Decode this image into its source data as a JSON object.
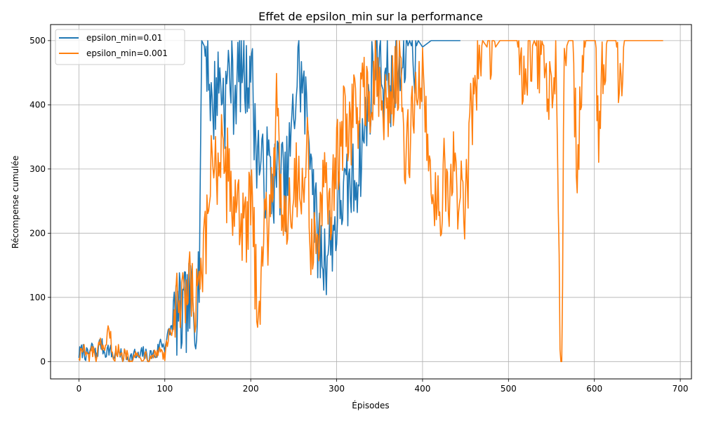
{
  "chart_data": {
    "type": "line",
    "title": "Effet de epsilon_min sur la performance",
    "xlabel": "Épisodes",
    "ylabel": "Récompense cumulée",
    "xlim": [
      -33,
      713
    ],
    "ylim": [
      -27,
      525
    ],
    "xticks": [
      0,
      100,
      200,
      300,
      400,
      500,
      600,
      700
    ],
    "yticks": [
      0,
      100,
      200,
      300,
      400,
      500
    ],
    "grid": true,
    "legend_position": "upper-left",
    "series": [
      {
        "name": "epsilon_min=0.01",
        "color": "#1f77b4",
        "episodes": 445,
        "keypoints": [
          [
            0,
            12
          ],
          [
            5,
            18
          ],
          [
            10,
            8
          ],
          [
            15,
            22
          ],
          [
            20,
            10
          ],
          [
            25,
            30
          ],
          [
            30,
            15
          ],
          [
            35,
            20
          ],
          [
            40,
            8
          ],
          [
            45,
            16
          ],
          [
            50,
            6
          ],
          [
            55,
            12
          ],
          [
            60,
            5
          ],
          [
            65,
            10
          ],
          [
            70,
            6
          ],
          [
            75,
            14
          ],
          [
            80,
            5
          ],
          [
            85,
            12
          ],
          [
            90,
            10
          ],
          [
            95,
            30
          ],
          [
            100,
            25
          ],
          [
            105,
            45
          ],
          [
            110,
            60
          ],
          [
            115,
            75
          ],
          [
            120,
            60
          ],
          [
            125,
            80
          ],
          [
            130,
            90
          ],
          [
            135,
            70
          ],
          [
            140,
            150
          ],
          [
            143,
            500
          ],
          [
            150,
            480
          ],
          [
            155,
            380
          ],
          [
            160,
            430
          ],
          [
            165,
            440
          ],
          [
            170,
            400
          ],
          [
            175,
            460
          ],
          [
            180,
            420
          ],
          [
            185,
            440
          ],
          [
            190,
            470
          ],
          [
            195,
            430
          ],
          [
            200,
            480
          ],
          [
            205,
            350
          ],
          [
            210,
            320
          ],
          [
            215,
            280
          ],
          [
            220,
            310
          ],
          [
            225,
            270
          ],
          [
            230,
            290
          ],
          [
            235,
            300
          ],
          [
            240,
            260
          ],
          [
            245,
            320
          ],
          [
            250,
            380
          ],
          [
            255,
            460
          ],
          [
            260,
            430
          ],
          [
            265,
            380
          ],
          [
            270,
            350
          ],
          [
            275,
            220
          ],
          [
            280,
            180
          ],
          [
            285,
            160
          ],
          [
            290,
            180
          ],
          [
            295,
            200
          ],
          [
            300,
            220
          ],
          [
            305,
            260
          ],
          [
            310,
            250
          ],
          [
            315,
            270
          ],
          [
            320,
            280
          ],
          [
            325,
            300
          ],
          [
            330,
            340
          ],
          [
            335,
            380
          ],
          [
            340,
            430
          ],
          [
            345,
            470
          ],
          [
            350,
            490
          ],
          [
            355,
            430
          ],
          [
            360,
            450
          ],
          [
            365,
            420
          ],
          [
            370,
            460
          ],
          [
            375,
            440
          ],
          [
            380,
            480
          ],
          [
            385,
            500
          ],
          [
            390,
            480
          ],
          [
            395,
            500
          ],
          [
            400,
            490
          ],
          [
            410,
            500
          ],
          [
            420,
            500
          ],
          [
            430,
            500
          ],
          [
            440,
            500
          ],
          [
            444,
            500
          ]
        ]
      },
      {
        "name": "epsilon_min=0.001",
        "color": "#ff7f0e",
        "episodes": 681,
        "keypoints": [
          [
            0,
            10
          ],
          [
            5,
            20
          ],
          [
            10,
            5
          ],
          [
            15,
            15
          ],
          [
            20,
            8
          ],
          [
            25,
            25
          ],
          [
            30,
            10
          ],
          [
            35,
            55
          ],
          [
            40,
            8
          ],
          [
            45,
            18
          ],
          [
            50,
            4
          ],
          [
            55,
            15
          ],
          [
            60,
            8
          ],
          [
            65,
            10
          ],
          [
            70,
            5
          ],
          [
            75,
            12
          ],
          [
            80,
            8
          ],
          [
            85,
            15
          ],
          [
            90,
            12
          ],
          [
            95,
            20
          ],
          [
            100,
            10
          ],
          [
            105,
            40
          ],
          [
            110,
            55
          ],
          [
            115,
            80
          ],
          [
            120,
            70
          ],
          [
            125,
            90
          ],
          [
            130,
            110
          ],
          [
            135,
            80
          ],
          [
            140,
            100
          ],
          [
            145,
            150
          ],
          [
            150,
            200
          ],
          [
            155,
            350
          ],
          [
            160,
            300
          ],
          [
            165,
            330
          ],
          [
            170,
            260
          ],
          [
            175,
            320
          ],
          [
            180,
            220
          ],
          [
            185,
            280
          ],
          [
            190,
            200
          ],
          [
            195,
            190
          ],
          [
            200,
            260
          ],
          [
            205,
            150
          ],
          [
            210,
            100
          ],
          [
            215,
            200
          ],
          [
            220,
            220
          ],
          [
            225,
            300
          ],
          [
            230,
            380
          ],
          [
            235,
            260
          ],
          [
            240,
            240
          ],
          [
            245,
            250
          ],
          [
            250,
            270
          ],
          [
            255,
            300
          ],
          [
            260,
            250
          ],
          [
            265,
            350
          ],
          [
            270,
            200
          ],
          [
            275,
            180
          ],
          [
            280,
            200
          ],
          [
            285,
            260
          ],
          [
            290,
            240
          ],
          [
            295,
            270
          ],
          [
            300,
            300
          ],
          [
            305,
            340
          ],
          [
            310,
            380
          ],
          [
            315,
            360
          ],
          [
            320,
            400
          ],
          [
            325,
            380
          ],
          [
            330,
            420
          ],
          [
            335,
            440
          ],
          [
            340,
            380
          ],
          [
            345,
            450
          ],
          [
            350,
            420
          ],
          [
            355,
            380
          ],
          [
            360,
            400
          ],
          [
            365,
            430
          ],
          [
            370,
            460
          ],
          [
            375,
            420
          ],
          [
            380,
            300
          ],
          [
            385,
            340
          ],
          [
            390,
            420
          ],
          [
            395,
            400
          ],
          [
            400,
            450
          ],
          [
            405,
            360
          ],
          [
            410,
            300
          ],
          [
            415,
            240
          ],
          [
            420,
            260
          ],
          [
            425,
            280
          ],
          [
            430,
            220
          ],
          [
            435,
            300
          ],
          [
            440,
            260
          ],
          [
            445,
            280
          ],
          [
            450,
            220
          ],
          [
            455,
            350
          ],
          [
            460,
            420
          ],
          [
            465,
            460
          ],
          [
            470,
            500
          ],
          [
            480,
            480
          ],
          [
            490,
            500
          ],
          [
            500,
            500
          ],
          [
            510,
            500
          ],
          [
            515,
            450
          ],
          [
            520,
            430
          ],
          [
            525,
            480
          ],
          [
            530,
            500
          ],
          [
            540,
            460
          ],
          [
            545,
            380
          ],
          [
            550,
            420
          ],
          [
            555,
            500
          ],
          [
            560,
            20
          ],
          [
            562,
            0
          ],
          [
            565,
            480
          ],
          [
            570,
            500
          ],
          [
            575,
            500
          ],
          [
            580,
            300
          ],
          [
            585,
            450
          ],
          [
            590,
            500
          ],
          [
            595,
            500
          ],
          [
            600,
            500
          ],
          [
            605,
            380
          ],
          [
            610,
            470
          ],
          [
            615,
            500
          ],
          [
            620,
            500
          ],
          [
            625,
            500
          ],
          [
            630,
            450
          ],
          [
            635,
            500
          ],
          [
            640,
            500
          ],
          [
            650,
            500
          ],
          [
            660,
            500
          ],
          [
            670,
            500
          ],
          [
            680,
            500
          ]
        ]
      }
    ]
  }
}
